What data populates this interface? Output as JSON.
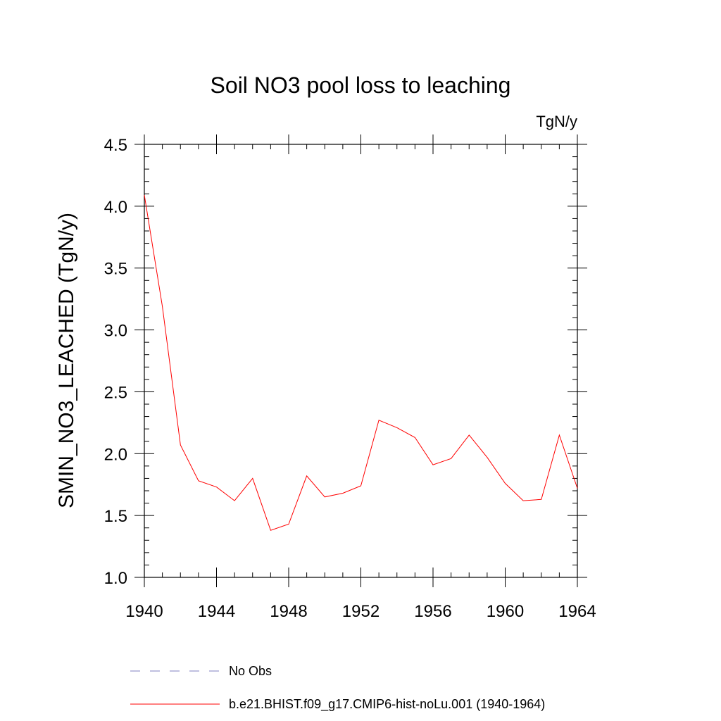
{
  "chart_data": {
    "type": "line",
    "title": "Soil NO3 pool loss to leaching",
    "units": "TgN/y",
    "xlabel": "",
    "ylabel": "SMIN_NO3_LEACHED  (TgN/y)",
    "xlim": [
      1940,
      1964
    ],
    "ylim": [
      1.0,
      4.5
    ],
    "x_ticks": [
      1940,
      1944,
      1948,
      1952,
      1956,
      1960,
      1964
    ],
    "x_tick_labels": [
      "1940",
      "1944",
      "1948",
      "1952",
      "1956",
      "1960",
      "1964"
    ],
    "y_ticks": [
      1.0,
      1.5,
      2.0,
      2.5,
      3.0,
      3.5,
      4.0,
      4.5
    ],
    "y_tick_labels": [
      "1.0",
      "1.5",
      "2.0",
      "2.5",
      "3.0",
      "3.5",
      "4.0",
      "4.5"
    ],
    "grid": false,
    "x": [
      1940,
      1941,
      1942,
      1943,
      1944,
      1945,
      1946,
      1947,
      1948,
      1949,
      1950,
      1951,
      1952,
      1953,
      1954,
      1955,
      1956,
      1957,
      1958,
      1959,
      1960,
      1961,
      1962,
      1963,
      1964
    ],
    "series": [
      {
        "name": "b.e21.BHIST.f09_g17.CMIP6-hist-noLu.001 (1940-1964)",
        "color": "#ff0000",
        "style": "solid",
        "values": [
          4.09,
          3.19,
          2.07,
          1.78,
          1.73,
          1.62,
          1.8,
          1.38,
          1.43,
          1.82,
          1.65,
          1.68,
          1.74,
          2.27,
          2.21,
          2.13,
          1.91,
          1.96,
          2.15,
          1.97,
          1.76,
          1.62,
          1.63,
          2.15,
          1.72
        ]
      }
    ],
    "legend": {
      "placement": "bottom",
      "entries": [
        {
          "label": "No Obs",
          "color": "#8080c0",
          "style": "dashed"
        },
        {
          "label": "b.e21.BHIST.f09_g17.CMIP6-hist-noLu.001 (1940-1964)",
          "color": "#ff0000",
          "style": "solid"
        }
      ]
    }
  }
}
